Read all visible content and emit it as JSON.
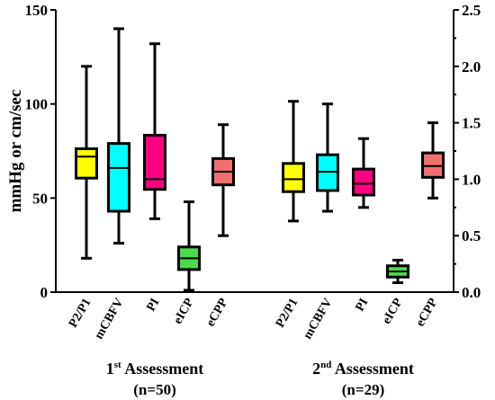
{
  "chart_data": {
    "type": "box",
    "ylabel": "mmHg or cm/sec",
    "left_axis": {
      "min": 0,
      "max": 150,
      "ticks": [
        "0",
        "50",
        "100",
        "150"
      ]
    },
    "right_axis": {
      "min": 0.0,
      "max": 2.5,
      "ticks": [
        "0.0",
        "0.5",
        "1.0",
        "1.5",
        "2.0",
        "2.5"
      ]
    },
    "groups": [
      {
        "title": "1",
        "title_sup": "st",
        "title_rest": " Assessment",
        "n_label": "(n=50)",
        "boxes": [
          {
            "label": "P2/P1",
            "color": "#ffff00",
            "axis": "right",
            "min": 0.3,
            "q1": 1.01,
            "median": 1.2,
            "q3": 1.27,
            "max": 2.0
          },
          {
            "label": "mCBFV",
            "color": "#00ffff",
            "axis": "left",
            "min": 26,
            "q1": 43,
            "median": 66,
            "q3": 79,
            "max": 140
          },
          {
            "label": "PI",
            "color": "#ff0080",
            "axis": "right",
            "min": 0.65,
            "q1": 0.91,
            "median": 1.0,
            "q3": 1.39,
            "max": 2.2
          },
          {
            "label": "eICP",
            "color": "#4cd94c",
            "axis": "left",
            "min": 1,
            "q1": 12,
            "median": 18,
            "q3": 24,
            "max": 48
          },
          {
            "label": "eCPP",
            "color": "#f07070",
            "axis": "left",
            "min": 30,
            "q1": 57,
            "median": 64,
            "q3": 71,
            "max": 89
          }
        ]
      },
      {
        "title": "2",
        "title_sup": "nd",
        "title_rest": " Assessment",
        "n_label": "(n=29)",
        "boxes": [
          {
            "label": "P2/P1",
            "color": "#ffff00",
            "axis": "right",
            "min": 0.63,
            "q1": 0.89,
            "median": 1.0,
            "q3": 1.14,
            "max": 1.69
          },
          {
            "label": "mCBFV",
            "color": "#00ffff",
            "axis": "left",
            "min": 43,
            "q1": 54,
            "median": 64,
            "q3": 73,
            "max": 100
          },
          {
            "label": "PI",
            "color": "#ff0080",
            "axis": "right",
            "min": 0.75,
            "q1": 0.86,
            "median": 0.96,
            "q3": 1.09,
            "max": 1.36
          },
          {
            "label": "eICP",
            "color": "#4cd94c",
            "axis": "left",
            "min": 5,
            "q1": 8,
            "median": 11,
            "q3": 14,
            "max": 17
          },
          {
            "label": "eCPP",
            "color": "#f07070",
            "axis": "left",
            "min": 50,
            "q1": 61,
            "median": 67,
            "q3": 74,
            "max": 90
          }
        ]
      }
    ],
    "grid": false
  }
}
